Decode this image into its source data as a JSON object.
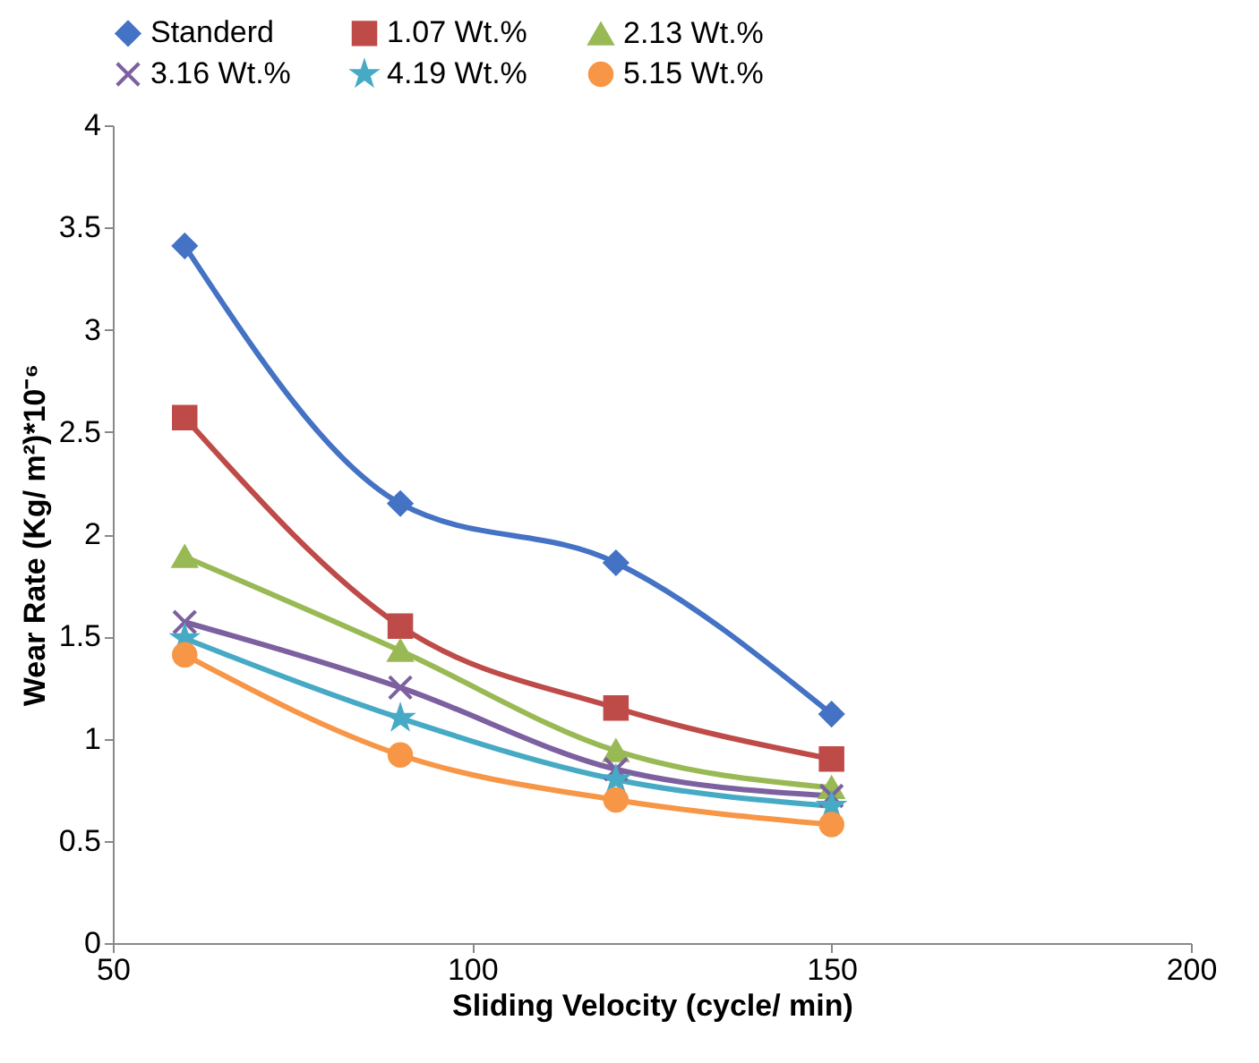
{
  "chart_data": {
    "type": "line",
    "xlabel": "Sliding Velocity (cycle/ min)",
    "ylabel": "Wear Rate (Kg/ m²)*10⁻⁶",
    "x": [
      60,
      90,
      120,
      150
    ],
    "xlim": [
      50,
      200
    ],
    "xticks": [
      50,
      100,
      150,
      200
    ],
    "ylim": [
      0,
      4
    ],
    "yticks": [
      0,
      0.5,
      1,
      1.5,
      2,
      2.5,
      3,
      3.5,
      4
    ],
    "grid": false,
    "legend": "top",
    "line_style": "solid",
    "series": [
      {
        "name": "Standerd",
        "color": "#4472c4",
        "marker": "diamond",
        "values": [
          3.41,
          2.15,
          1.86,
          1.12
        ]
      },
      {
        "name": "1.07 Wt.%",
        "color": "#be4b48",
        "marker": "square",
        "values": [
          2.57,
          1.55,
          1.15,
          0.9
        ]
      },
      {
        "name": "2.13 Wt.%",
        "color": "#98b954",
        "marker": "triangle",
        "values": [
          1.89,
          1.43,
          0.94,
          0.76
        ]
      },
      {
        "name": "3.16 Wt.%",
        "color": "#7d60a0",
        "marker": "cross",
        "values": [
          1.57,
          1.25,
          0.85,
          0.72
        ]
      },
      {
        "name": "4.19 Wt.%",
        "color": "#46aac5",
        "marker": "star",
        "values": [
          1.49,
          1.1,
          0.8,
          0.67
        ]
      },
      {
        "name": "5.15 Wt.%",
        "color": "#f79646",
        "marker": "circle",
        "values": [
          1.41,
          0.92,
          0.7,
          0.58
        ]
      }
    ]
  }
}
